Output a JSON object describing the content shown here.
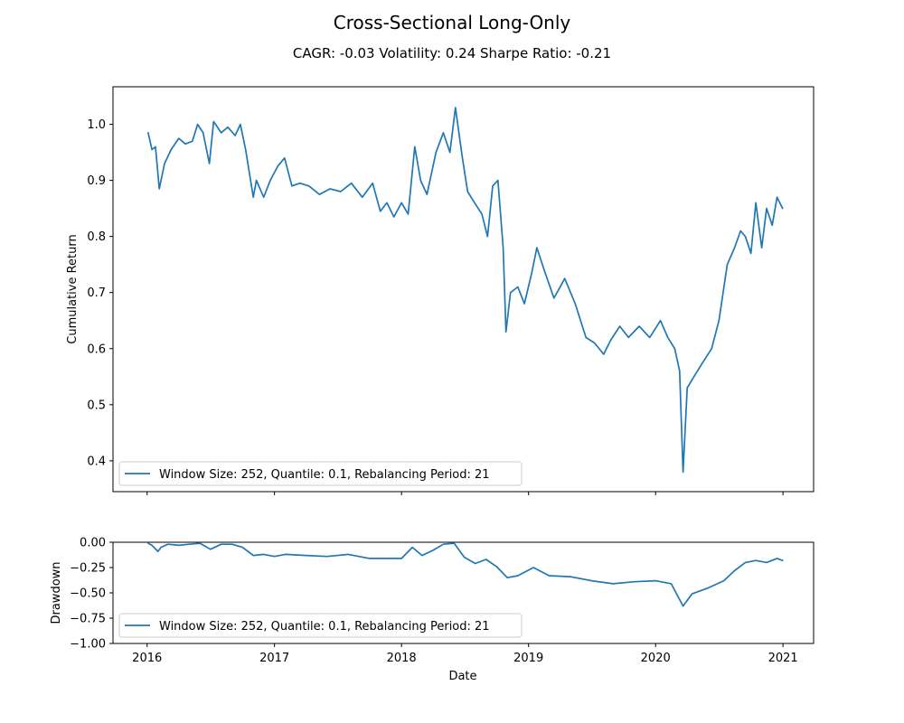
{
  "title": "Cross-Sectional Long-Only",
  "subtitle": "CAGR: -0.03 Volatility: 0.24 Sharpe Ratio: -0.21",
  "chart_data": [
    {
      "type": "line",
      "ylabel": "Cumulative Return",
      "xlabel": "",
      "ylim": [
        0.345,
        1.067
      ],
      "xlim": [
        "2015-09-25",
        "2021-03-30"
      ],
      "yticks": [
        0.4,
        0.5,
        0.6,
        0.7,
        0.8,
        0.9,
        1.0
      ],
      "ytick_labels": [
        "0.4",
        "0.5",
        "0.6",
        "0.7",
        "0.8",
        "0.9",
        "1.0"
      ],
      "xticks": [
        "2016-01-01",
        "2017-01-01",
        "2018-01-01",
        "2019-01-01",
        "2020-01-01",
        "2021-01-01"
      ],
      "grid": false,
      "legend_position": "lower-left",
      "series": [
        {
          "name": "Window Size: 252, Quantile: 0.1, Rebalancing Period: 21",
          "x": [
            "2016-01-04",
            "2016-01-15",
            "2016-01-25",
            "2016-02-05",
            "2016-02-20",
            "2016-03-10",
            "2016-04-01",
            "2016-04-20",
            "2016-05-10",
            "2016-05-25",
            "2016-06-10",
            "2016-06-28",
            "2016-07-10",
            "2016-08-01",
            "2016-08-20",
            "2016-09-10",
            "2016-09-25",
            "2016-10-10",
            "2016-11-01",
            "2016-11-10",
            "2016-12-01",
            "2016-12-20",
            "2017-01-10",
            "2017-01-30",
            "2017-02-20",
            "2017-03-15",
            "2017-04-10",
            "2017-05-10",
            "2017-06-10",
            "2017-07-10",
            "2017-08-10",
            "2017-09-10",
            "2017-10-10",
            "2017-11-01",
            "2017-11-20",
            "2017-12-10",
            "2018-01-01",
            "2018-01-20",
            "2018-02-08",
            "2018-02-25",
            "2018-03-15",
            "2018-04-10",
            "2018-05-01",
            "2018-05-20",
            "2018-06-05",
            "2018-06-25",
            "2018-07-10",
            "2018-07-30",
            "2018-08-20",
            "2018-09-05",
            "2018-09-20",
            "2018-10-05",
            "2018-10-20",
            "2018-10-28",
            "2018-11-10",
            "2018-12-01",
            "2018-12-20",
            "2019-01-10",
            "2019-01-25",
            "2019-02-15",
            "2019-03-15",
            "2019-04-15",
            "2019-05-15",
            "2019-06-15",
            "2019-07-10",
            "2019-08-05",
            "2019-08-25",
            "2019-09-20",
            "2019-10-15",
            "2019-11-15",
            "2019-12-15",
            "2020-01-15",
            "2020-02-05",
            "2020-02-25",
            "2020-03-10",
            "2020-03-20",
            "2020-04-01",
            "2020-04-20",
            "2020-05-15",
            "2020-06-10",
            "2020-07-01",
            "2020-07-25",
            "2020-08-15",
            "2020-09-01",
            "2020-09-15",
            "2020-10-01",
            "2020-10-15",
            "2020-11-01",
            "2020-11-15",
            "2020-12-01",
            "2020-12-15",
            "2020-12-31"
          ],
          "values": [
            0.985,
            0.955,
            0.96,
            0.885,
            0.93,
            0.955,
            0.975,
            0.965,
            0.97,
            1.0,
            0.985,
            0.93,
            1.005,
            0.985,
            0.995,
            0.98,
            1.0,
            0.955,
            0.87,
            0.9,
            0.87,
            0.9,
            0.925,
            0.94,
            0.89,
            0.895,
            0.89,
            0.875,
            0.885,
            0.88,
            0.895,
            0.87,
            0.895,
            0.845,
            0.86,
            0.835,
            0.86,
            0.84,
            0.96,
            0.9,
            0.875,
            0.95,
            0.985,
            0.95,
            1.03,
            0.94,
            0.88,
            0.86,
            0.84,
            0.8,
            0.89,
            0.9,
            0.78,
            0.63,
            0.7,
            0.71,
            0.68,
            0.735,
            0.78,
            0.74,
            0.69,
            0.725,
            0.68,
            0.62,
            0.61,
            0.59,
            0.615,
            0.64,
            0.62,
            0.64,
            0.62,
            0.65,
            0.62,
            0.6,
            0.56,
            0.38,
            0.53,
            0.55,
            0.575,
            0.6,
            0.65,
            0.75,
            0.78,
            0.81,
            0.8,
            0.77,
            0.86,
            0.78,
            0.85,
            0.82,
            0.87,
            0.85
          ]
        }
      ]
    },
    {
      "type": "line",
      "ylabel": "Drawdown",
      "xlabel": "Date",
      "ylim": [
        -1.0,
        0.0
      ],
      "xlim": [
        "2015-09-25",
        "2021-03-30"
      ],
      "yticks": [
        -1.0,
        -0.75,
        -0.5,
        -0.25,
        0.0
      ],
      "ytick_labels": [
        "−1.00",
        "−0.75",
        "−0.50",
        "−0.25",
        "0.00"
      ],
      "xticks": [
        "2016-01-01",
        "2017-01-01",
        "2018-01-01",
        "2019-01-01",
        "2020-01-01",
        "2021-01-01"
      ],
      "xtick_labels": [
        "2016",
        "2017",
        "2018",
        "2019",
        "2020",
        "2021"
      ],
      "grid": false,
      "legend_position": "lower-left",
      "series": [
        {
          "name": "Window Size: 252, Quantile: 0.1, Rebalancing Period: 21",
          "x": [
            "2016-01-04",
            "2016-01-15",
            "2016-02-01",
            "2016-02-10",
            "2016-03-01",
            "2016-04-01",
            "2016-05-01",
            "2016-06-01",
            "2016-07-01",
            "2016-08-01",
            "2016-09-01",
            "2016-10-01",
            "2016-11-01",
            "2016-12-01",
            "2017-01-01",
            "2017-02-01",
            "2017-04-01",
            "2017-06-01",
            "2017-08-01",
            "2017-10-01",
            "2017-12-01",
            "2018-01-01",
            "2018-02-01",
            "2018-03-01",
            "2018-04-01",
            "2018-05-01",
            "2018-06-01",
            "2018-07-01",
            "2018-08-01",
            "2018-09-01",
            "2018-10-01",
            "2018-11-01",
            "2018-12-01",
            "2019-01-15",
            "2019-03-01",
            "2019-05-01",
            "2019-07-01",
            "2019-09-01",
            "2019-11-01",
            "2020-01-01",
            "2020-02-15",
            "2020-03-20",
            "2020-04-15",
            "2020-06-01",
            "2020-07-15",
            "2020-08-15",
            "2020-09-15",
            "2020-10-15",
            "2020-11-15",
            "2020-12-15",
            "2020-12-31"
          ],
          "values": [
            -0.01,
            -0.03,
            -0.09,
            -0.05,
            -0.02,
            -0.03,
            -0.02,
            -0.01,
            -0.07,
            -0.02,
            -0.02,
            -0.05,
            -0.13,
            -0.12,
            -0.14,
            -0.12,
            -0.13,
            -0.14,
            -0.12,
            -0.16,
            -0.16,
            -0.16,
            -0.05,
            -0.13,
            -0.08,
            -0.02,
            -0.01,
            -0.15,
            -0.21,
            -0.17,
            -0.24,
            -0.35,
            -0.33,
            -0.25,
            -0.33,
            -0.34,
            -0.38,
            -0.41,
            -0.39,
            -0.38,
            -0.41,
            -0.63,
            -0.51,
            -0.45,
            -0.38,
            -0.28,
            -0.2,
            -0.18,
            -0.2,
            -0.16,
            -0.18
          ]
        }
      ]
    }
  ]
}
